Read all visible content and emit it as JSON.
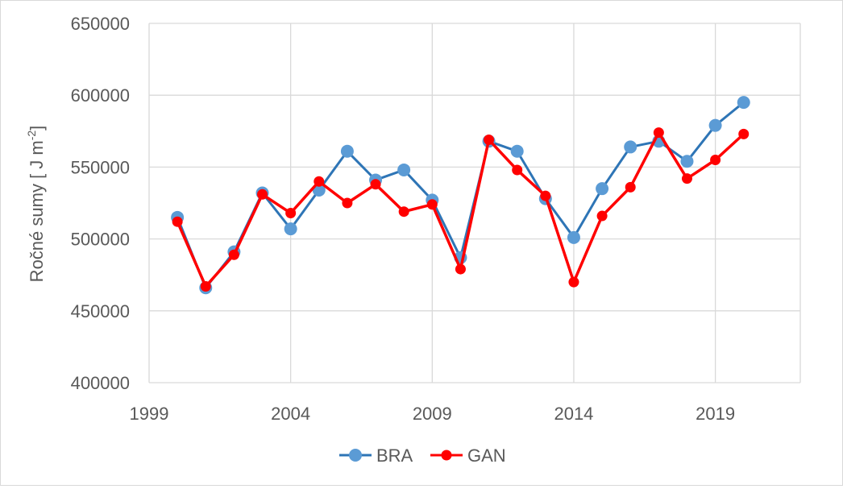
{
  "chart_data": {
    "type": "line",
    "title": "",
    "xlabel": "",
    "ylabel": "Ročné sumy [ J m",
    "ylabel_sup": "-2",
    "ylabel_end": "]",
    "xlim": [
      1999,
      2022
    ],
    "ylim": [
      400000,
      650000
    ],
    "x_ticks": [
      1999,
      2004,
      2009,
      2014,
      2019
    ],
    "x_gridlines": [
      1999,
      2004,
      2009,
      2014,
      2019,
      2022
    ],
    "y_ticks": [
      400000,
      450000,
      500000,
      550000,
      600000,
      650000
    ],
    "grid": true,
    "legend_position": "bottom",
    "series": [
      {
        "name": "BRA",
        "color": "#5b9bd5",
        "line_color": "#2e75b6",
        "x": [
          2000,
          2001,
          2002,
          2003,
          2004,
          2005,
          2006,
          2007,
          2008,
          2009,
          2010,
          2011,
          2012,
          2013,
          2014,
          2015,
          2016,
          2017,
          2018,
          2019,
          2020
        ],
        "y": [
          515000,
          466000,
          491000,
          532000,
          507000,
          534000,
          561000,
          541000,
          548000,
          527000,
          487000,
          568000,
          561000,
          528000,
          501000,
          535000,
          564000,
          568000,
          554000,
          579000,
          595000
        ]
      },
      {
        "name": "GAN",
        "color": "#ff0000",
        "line_color": "#ff0000",
        "x": [
          2000,
          2001,
          2002,
          2003,
          2004,
          2005,
          2006,
          2007,
          2008,
          2009,
          2010,
          2011,
          2012,
          2013,
          2014,
          2015,
          2016,
          2017,
          2018,
          2019,
          2020
        ],
        "y": [
          512000,
          467000,
          489000,
          531000,
          518000,
          540000,
          525000,
          538000,
          519000,
          524000,
          479000,
          569000,
          548000,
          530000,
          470000,
          516000,
          536000,
          574000,
          542000,
          555000,
          573000
        ]
      }
    ]
  }
}
